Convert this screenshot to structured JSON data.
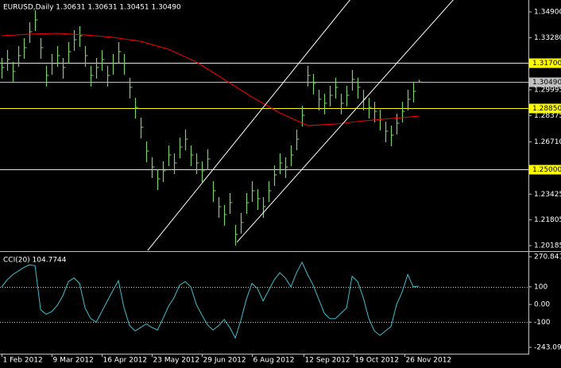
{
  "chart_data": [
    {
      "type": "ohlc",
      "title": "EURUSD,Daily  1.30631 1.30631 1.30451 1.30490",
      "color": "#7fd06a",
      "high": [
        1.32,
        1.325,
        1.3175,
        1.3275,
        1.3325,
        1.3425,
        1.35,
        1.3325,
        1.315,
        1.3225,
        1.3275,
        1.32,
        1.33,
        1.3375,
        1.34,
        1.3275,
        1.315,
        1.32,
        1.325,
        1.315,
        1.3225,
        1.33,
        1.3225,
        1.3075,
        1.2949,
        1.2824,
        1.2674,
        1.2574,
        1.2499,
        1.2549,
        1.2649,
        1.2599,
        1.2699,
        1.2749,
        1.2649,
        1.2599,
        1.2549,
        1.2624,
        1.2424,
        1.2324,
        1.2274,
        1.2349,
        1.2149,
        1.2224,
        1.2349,
        1.2424,
        1.2374,
        1.2324,
        1.2424,
        1.2524,
        1.2599,
        1.2574,
        1.2649,
        1.2749,
        1.2899,
        1.315,
        1.31,
        1.3,
        1.2975,
        1.3025,
        1.3075,
        1.2975,
        1.3025,
        1.3125,
        1.3075,
        1.3,
        1.2949,
        1.2924,
        1.2874,
        1.2799,
        1.2774,
        1.2849,
        1.2924,
        1.3,
        1.305,
        1.3063
      ],
      "low": [
        1.307,
        1.312,
        1.3045,
        1.3145,
        1.3195,
        1.3295,
        1.337,
        1.3195,
        1.302,
        1.3095,
        1.3145,
        1.307,
        1.317,
        1.3245,
        1.327,
        1.3145,
        1.302,
        1.307,
        1.312,
        1.302,
        1.3095,
        1.317,
        1.3095,
        1.2945,
        1.2819,
        1.2694,
        1.2544,
        1.2444,
        1.2369,
        1.2419,
        1.2519,
        1.2469,
        1.2569,
        1.2619,
        1.2519,
        1.2469,
        1.2419,
        1.2494,
        1.2294,
        1.2194,
        1.2144,
        1.2219,
        1.2019,
        1.2094,
        1.2219,
        1.2294,
        1.2244,
        1.2194,
        1.2294,
        1.2394,
        1.2469,
        1.2444,
        1.2519,
        1.2619,
        1.2769,
        1.302,
        1.297,
        1.287,
        1.2845,
        1.2895,
        1.2945,
        1.2845,
        1.2895,
        1.2995,
        1.2945,
        1.287,
        1.2819,
        1.2794,
        1.2744,
        1.2669,
        1.2644,
        1.2719,
        1.2794,
        1.287,
        1.292,
        1.3045
      ],
      "close": [
        1.314,
        1.319,
        1.3115,
        1.3215,
        1.3265,
        1.3365,
        1.344,
        1.3265,
        1.309,
        1.3165,
        1.3215,
        1.314,
        1.324,
        1.3315,
        1.334,
        1.3215,
        1.309,
        1.314,
        1.319,
        1.309,
        1.3165,
        1.324,
        1.3165,
        1.3015,
        1.2889,
        1.2764,
        1.2614,
        1.2514,
        1.2439,
        1.2489,
        1.2589,
        1.2539,
        1.2639,
        1.2689,
        1.2589,
        1.2539,
        1.2489,
        1.2564,
        1.2364,
        1.2264,
        1.2214,
        1.2289,
        1.2089,
        1.2164,
        1.2289,
        1.2364,
        1.2314,
        1.2264,
        1.2364,
        1.2464,
        1.2539,
        1.2514,
        1.2589,
        1.2689,
        1.2839,
        1.309,
        1.304,
        1.294,
        1.2915,
        1.2965,
        1.3015,
        1.2915,
        1.2965,
        1.3065,
        1.3015,
        1.294,
        1.2889,
        1.2864,
        1.2814,
        1.2739,
        1.2714,
        1.2789,
        1.2864,
        1.294,
        1.299,
        1.3049
      ],
      "moving_average": {
        "color": "#ff0000",
        "x": [
          0,
          5,
          10,
          15,
          20,
          25,
          30,
          35,
          40,
          45,
          50,
          55,
          60,
          65,
          70,
          75
        ],
        "values": [
          1.334,
          1.335,
          1.3355,
          1.3345,
          1.333,
          1.3305,
          1.3255,
          1.3175,
          1.3065,
          1.2954,
          1.2854,
          1.2774,
          1.2784,
          1.2804,
          1.2819,
          1.2834
        ]
      },
      "channel": {
        "color": "#ffffff",
        "lines": [
          {
            "x": [
              25.7,
              62.6
            ],
            "values": [
              1.1964,
              1.3565
            ]
          },
          {
            "x": [
              42.3,
              75
            ],
            "values": [
              1.204,
              1.3323
            ]
          }
        ]
      },
      "levels": [
        {
          "value": 1.317,
          "label": "1.31700",
          "color": "#ffff00"
        },
        {
          "value": 1.2885,
          "label": "1.28850",
          "color": "#ffff00"
        },
        {
          "value": 1.25,
          "label": "1.25000",
          "color": "#ffff00"
        },
        {
          "value": 1.3049,
          "label": "1.30490",
          "color": "#c0c0c0"
        }
      ],
      "xlim": [
        -0.3,
        94.7
      ],
      "ylim": [
        1.19885,
        1.35651
      ],
      "yticks": [
        {
          "value": 1.349,
          "label": "1.34900"
        },
        {
          "value": 1.3328,
          "label": "1.33280"
        },
        {
          "value": 1.29995,
          "label": "1.29995"
        },
        {
          "value": 1.28375,
          "label": "1.28375"
        },
        {
          "value": 1.2671,
          "label": "1.26710"
        },
        {
          "value": 1.23425,
          "label": "1.23425"
        },
        {
          "value": 1.21805,
          "label": "1.21805"
        },
        {
          "value": 1.20185,
          "label": "1.20185"
        }
      ]
    },
    {
      "type": "line",
      "title": "CCI(20) 104.7744",
      "color": "#3cbfcf",
      "values": [
        100,
        140,
        170,
        190,
        210,
        225,
        220,
        -30,
        -55,
        -40,
        -5,
        50,
        130,
        150,
        120,
        -20,
        -80,
        -100,
        -40,
        20,
        80,
        135,
        -20,
        -120,
        -150,
        -130,
        -110,
        -130,
        -145,
        -80,
        -10,
        40,
        110,
        130,
        100,
        0,
        -60,
        -115,
        -145,
        -120,
        -85,
        -130,
        -190,
        -90,
        30,
        120,
        90,
        20,
        80,
        140,
        180,
        150,
        100,
        180,
        240,
        170,
        110,
        30,
        -50,
        -80,
        -80,
        -50,
        -20,
        160,
        130,
        40,
        -80,
        -150,
        -175,
        -150,
        -125,
        0,
        70,
        170,
        100,
        104.7744
      ],
      "levels": [
        100,
        -100
      ],
      "xlim": [
        -0.3,
        94.7
      ],
      "ylim": [
        -243.09,
        270.8412
      ],
      "yticks": [
        270.8412,
        100,
        {
          "value": 0,
          "label": "0.00"
        },
        -100,
        -243.09
      ],
      "xticks": [
        {
          "value": 0,
          "label": "1 Feb 2012"
        },
        {
          "value": 9,
          "label": "9 Mar 2012"
        },
        {
          "value": 18,
          "label": "16 Apr 2012"
        },
        {
          "value": 27,
          "label": "23 May 2012"
        },
        {
          "value": 36,
          "label": "29 Jun 2012"
        },
        {
          "value": 45,
          "label": "6 Aug 2012"
        },
        {
          "value": 54.3,
          "label": "12 Sep 2012"
        },
        {
          "value": 63.3,
          "label": "19 Oct 2012"
        },
        {
          "value": 72.4,
          "label": "26 Nov 2012"
        }
      ]
    }
  ]
}
